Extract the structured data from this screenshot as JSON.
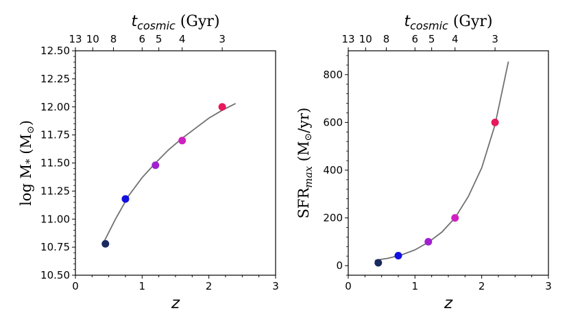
{
  "chart_data": [
    {
      "type": "scatter",
      "xlabel": "z",
      "ylabel": "log M",
      "ylabel_sub": "*",
      "ylabel_unit": "(M",
      "ylabel_unit_sub": "⊙",
      "ylabel_unit_end": ")",
      "toplabel": "t",
      "toplabel_sub": "cosmic",
      "toplabel_unit": " (Gyr)",
      "xlim": [
        0,
        3
      ],
      "ylim": [
        10.5,
        12.5
      ],
      "xticks": [
        "0",
        "1",
        "2",
        "3"
      ],
      "xtick_values": [
        0,
        1,
        2,
        3
      ],
      "yticks": [
        "10.50",
        "10.75",
        "11.00",
        "11.25",
        "11.50",
        "11.75",
        "12.00",
        "12.25",
        "12.50"
      ],
      "ytick_values": [
        10.5,
        10.75,
        11.0,
        11.25,
        11.5,
        11.75,
        12.0,
        12.25,
        12.5
      ],
      "top_ticks": [
        "13",
        "10",
        "8",
        "6",
        "5",
        "4",
        "3"
      ],
      "top_tick_z": [
        0.0,
        0.26,
        0.57,
        1.0,
        1.25,
        1.6,
        2.2
      ],
      "points": [
        {
          "x": 0.45,
          "y": 10.78,
          "color": "#1a2a5e"
        },
        {
          "x": 0.75,
          "y": 11.18,
          "color": "#1010e0"
        },
        {
          "x": 1.2,
          "y": 11.48,
          "color": "#a020d0"
        },
        {
          "x": 1.6,
          "y": 11.7,
          "color": "#d020c0"
        },
        {
          "x": 2.2,
          "y": 12.0,
          "color": "#e8185a"
        }
      ],
      "fit": {
        "x": [
          0.43,
          0.6,
          0.8,
          1.0,
          1.2,
          1.4,
          1.6,
          1.8,
          2.0,
          2.2,
          2.4
        ],
        "y": [
          10.8,
          11.0,
          11.21,
          11.37,
          11.5,
          11.62,
          11.72,
          11.81,
          11.9,
          11.97,
          12.03
        ],
        "color": "#707070"
      }
    },
    {
      "type": "scatter",
      "xlabel": "z",
      "ylabel": "SFR",
      "ylabel_sub": "max",
      "ylabel_unit": "(M",
      "ylabel_unit_sub": "⊙",
      "ylabel_unit_end": "/yr)",
      "toplabel": "t",
      "toplabel_sub": "cosmic",
      "toplabel_unit": " (Gyr)",
      "xlim": [
        0,
        3
      ],
      "ylim": [
        -40,
        900
      ],
      "xticks": [
        "0",
        "1",
        "2",
        "3"
      ],
      "xtick_values": [
        0,
        1,
        2,
        3
      ],
      "yticks": [
        "0",
        "200",
        "400",
        "600",
        "800"
      ],
      "ytick_values": [
        0,
        200,
        400,
        600,
        800
      ],
      "top_ticks": [
        "13",
        "10",
        "8",
        "6",
        "5",
        "4",
        "3"
      ],
      "top_tick_z": [
        0.0,
        0.26,
        0.57,
        1.0,
        1.25,
        1.6,
        2.2
      ],
      "points": [
        {
          "x": 0.45,
          "y": 12,
          "color": "#1a2a5e"
        },
        {
          "x": 0.75,
          "y": 42,
          "color": "#1010e0"
        },
        {
          "x": 1.2,
          "y": 100,
          "color": "#a020d0"
        },
        {
          "x": 1.6,
          "y": 200,
          "color": "#d020c0"
        },
        {
          "x": 2.2,
          "y": 600,
          "color": "#e8185a"
        }
      ],
      "fit": {
        "x": [
          0.4,
          0.6,
          0.8,
          1.0,
          1.2,
          1.4,
          1.6,
          1.8,
          2.0,
          2.2,
          2.4
        ],
        "y": [
          22,
          31,
          45,
          66,
          98,
          140,
          200,
          290,
          410,
          590,
          855
        ],
        "color": "#707070"
      }
    }
  ]
}
